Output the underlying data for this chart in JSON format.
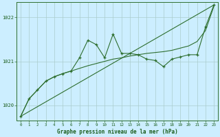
{
  "title": "Graphe pression niveau de la mer (hPa)",
  "background_color": "#cceeff",
  "grid_color": "#aacccc",
  "line_color": "#2d6e2d",
  "x_ticks": [
    0,
    1,
    2,
    3,
    4,
    5,
    6,
    7,
    8,
    9,
    10,
    11,
    12,
    13,
    14,
    15,
    16,
    17,
    18,
    19,
    20,
    21,
    22,
    23
  ],
  "y_ticks": [
    1020,
    1021,
    1022
  ],
  "ylim": [
    1019.65,
    1022.35
  ],
  "xlim": [
    -0.5,
    23.5
  ],
  "series1_smooth": {
    "x": [
      0,
      1,
      2,
      3,
      4,
      5,
      6,
      7,
      8,
      9,
      10,
      11,
      12,
      13,
      14,
      15,
      16,
      17,
      18,
      19,
      20,
      21,
      22,
      23
    ],
    "y": [
      1019.75,
      1020.15,
      1020.35,
      1020.55,
      1020.65,
      1020.72,
      1020.78,
      1020.84,
      1020.9,
      1020.95,
      1021.0,
      1021.05,
      1021.08,
      1021.12,
      1021.15,
      1021.18,
      1021.2,
      1021.22,
      1021.25,
      1021.3,
      1021.35,
      1021.45,
      1021.7,
      1022.25
    ]
  },
  "series2_jagged": {
    "x": [
      0,
      1,
      2,
      3,
      4,
      5,
      6,
      7,
      8,
      9,
      10,
      11,
      12,
      13,
      14,
      15,
      16,
      17,
      18,
      19,
      20,
      21,
      22,
      23
    ],
    "y": [
      1019.75,
      1020.15,
      1020.35,
      1020.55,
      1020.65,
      1020.72,
      1020.78,
      1021.08,
      1021.48,
      1021.38,
      1021.08,
      1021.62,
      1021.18,
      1021.18,
      1021.15,
      1021.05,
      1021.02,
      1020.88,
      1021.05,
      1021.1,
      1021.15,
      1021.15,
      1021.78,
      1022.28
    ]
  },
  "series3_trend": {
    "x": [
      0,
      23
    ],
    "y": [
      1019.75,
      1022.28
    ]
  }
}
